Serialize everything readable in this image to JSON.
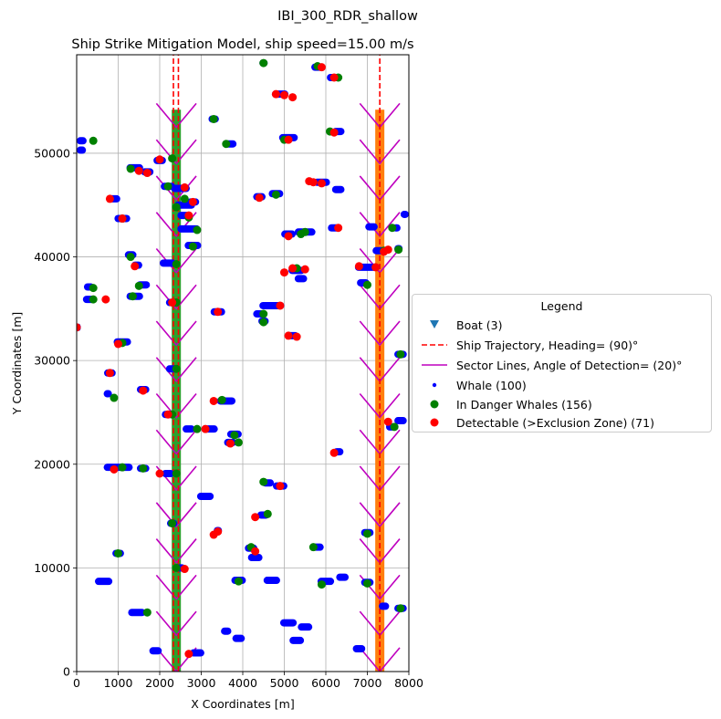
{
  "figure": {
    "suptitle": "IBI_300_RDR_shallow"
  },
  "chart_data": {
    "type": "scatter",
    "title": "Ship Strike Mitigation Model, ship speed=15.00 m/s",
    "xlabel": "X Coordinates [m]",
    "ylabel": "Y Coordinates [m]",
    "xlim": [
      0,
      8000
    ],
    "ylim": [
      0,
      59500
    ],
    "xticks": [
      0,
      1000,
      2000,
      3000,
      4000,
      5000,
      6000,
      7000,
      8000
    ],
    "yticks": [
      0,
      10000,
      20000,
      30000,
      40000,
      50000
    ],
    "xtick_labels": [
      "0",
      "1000",
      "2000",
      "3000",
      "4000",
      "5000",
      "6000",
      "7000",
      "8000"
    ],
    "ytick_labels": [
      "0",
      "10000",
      "20000",
      "30000",
      "40000",
      "50000"
    ],
    "grid": true,
    "legend_placement": "outside-right",
    "colors": {
      "whale": "#0000ff",
      "danger": "#008000",
      "detectable": "#ff0000",
      "trajectory": "#ff0000",
      "sector": "#bf00bf",
      "boat": "#1f77b4",
      "ship_band_1": "#2ca02c",
      "ship_band_2": "#ff7f0e"
    },
    "ship_tracks": [
      {
        "x": 2400,
        "y_start": 0,
        "y_end": 54200,
        "band_color": "#2ca02c"
      },
      {
        "x": 7300,
        "y_start": 0,
        "y_end": 54200,
        "band_color": "#ff7f0e"
      }
    ],
    "trajectory_lines": [
      {
        "x": 2330,
        "y0": 0,
        "y1": 59500
      },
      {
        "x": 2450,
        "y0": 0,
        "y1": 59500
      },
      {
        "x": 7300,
        "y0": 0,
        "y1": 59500
      }
    ],
    "sector_chevrons": {
      "tracks_x": [
        2400,
        7300
      ],
      "y_start": 0,
      "y_end": 54000,
      "spacing": 3500,
      "half_width": 480,
      "arm_height": 2300
    },
    "whale_clusters": [
      {
        "x": 100,
        "y": 51200,
        "w": 280
      },
      {
        "x": 100,
        "y": 50300,
        "w": 250
      },
      {
        "x": 300,
        "y": 37100,
        "w": 250
      },
      {
        "x": 300,
        "y": 35900,
        "w": 300
      },
      {
        "x": 0,
        "y": 33200,
        "w": 200
      },
      {
        "x": 900,
        "y": 45600,
        "w": 300
      },
      {
        "x": 1100,
        "y": 43700,
        "w": 380
      },
      {
        "x": 1400,
        "y": 48600,
        "w": 400
      },
      {
        "x": 1700,
        "y": 48200,
        "w": 300
      },
      {
        "x": 1300,
        "y": 40200,
        "w": 280
      },
      {
        "x": 1450,
        "y": 39200,
        "w": 260
      },
      {
        "x": 1600,
        "y": 37300,
        "w": 330
      },
      {
        "x": 1400,
        "y": 36200,
        "w": 400
      },
      {
        "x": 1100,
        "y": 31800,
        "w": 420
      },
      {
        "x": 800,
        "y": 28800,
        "w": 280
      },
      {
        "x": 750,
        "y": 26800,
        "w": 200
      },
      {
        "x": 1600,
        "y": 27200,
        "w": 300
      },
      {
        "x": 1000,
        "y": 19700,
        "w": 700
      },
      {
        "x": 1600,
        "y": 19600,
        "w": 300
      },
      {
        "x": 1000,
        "y": 11400,
        "w": 280
      },
      {
        "x": 650,
        "y": 8700,
        "w": 420
      },
      {
        "x": 1450,
        "y": 5700,
        "w": 420
      },
      {
        "x": 1900,
        "y": 2000,
        "w": 300
      },
      {
        "x": 2000,
        "y": 49300,
        "w": 300
      },
      {
        "x": 2200,
        "y": 46800,
        "w": 350
      },
      {
        "x": 2500,
        "y": 46600,
        "w": 450
      },
      {
        "x": 2600,
        "y": 45000,
        "w": 500
      },
      {
        "x": 2800,
        "y": 45300,
        "w": 300
      },
      {
        "x": 2600,
        "y": 44000,
        "w": 350
      },
      {
        "x": 2700,
        "y": 42700,
        "w": 550
      },
      {
        "x": 2800,
        "y": 41100,
        "w": 400
      },
      {
        "x": 2200,
        "y": 39400,
        "w": 400
      },
      {
        "x": 2300,
        "y": 35600,
        "w": 300
      },
      {
        "x": 2300,
        "y": 29200,
        "w": 300
      },
      {
        "x": 2200,
        "y": 24800,
        "w": 300
      },
      {
        "x": 2700,
        "y": 23400,
        "w": 300
      },
      {
        "x": 2200,
        "y": 19100,
        "w": 300
      },
      {
        "x": 2300,
        "y": 14300,
        "w": 250
      },
      {
        "x": 2500,
        "y": 10000,
        "w": 250
      },
      {
        "x": 2900,
        "y": 1800,
        "w": 350
      },
      {
        "x": 3300,
        "y": 53300,
        "w": 250
      },
      {
        "x": 3700,
        "y": 50900,
        "w": 300
      },
      {
        "x": 3400,
        "y": 34700,
        "w": 350
      },
      {
        "x": 3600,
        "y": 26100,
        "w": 450
      },
      {
        "x": 3200,
        "y": 23400,
        "w": 400
      },
      {
        "x": 3800,
        "y": 22900,
        "w": 350
      },
      {
        "x": 3700,
        "y": 22100,
        "w": 300
      },
      {
        "x": 3100,
        "y": 16900,
        "w": 400
      },
      {
        "x": 3400,
        "y": 13600,
        "w": 200
      },
      {
        "x": 3600,
        "y": 3900,
        "w": 250
      },
      {
        "x": 3900,
        "y": 3200,
        "w": 300
      },
      {
        "x": 3900,
        "y": 8800,
        "w": 350
      },
      {
        "x": 4500,
        "y": 58700,
        "w": 200
      },
      {
        "x": 4900,
        "y": 55700,
        "w": 400
      },
      {
        "x": 5100,
        "y": 51500,
        "w": 450
      },
      {
        "x": 4400,
        "y": 45800,
        "w": 300
      },
      {
        "x": 4800,
        "y": 46100,
        "w": 350
      },
      {
        "x": 5100,
        "y": 42200,
        "w": 350
      },
      {
        "x": 5500,
        "y": 42400,
        "w": 500
      },
      {
        "x": 5300,
        "y": 38700,
        "w": 400
      },
      {
        "x": 5400,
        "y": 37900,
        "w": 300
      },
      {
        "x": 4700,
        "y": 35300,
        "w": 600
      },
      {
        "x": 4400,
        "y": 34500,
        "w": 300
      },
      {
        "x": 4500,
        "y": 33800,
        "w": 250
      },
      {
        "x": 5200,
        "y": 32400,
        "w": 300
      },
      {
        "x": 4600,
        "y": 18200,
        "w": 300
      },
      {
        "x": 4900,
        "y": 17900,
        "w": 350
      },
      {
        "x": 4500,
        "y": 15100,
        "w": 300
      },
      {
        "x": 4200,
        "y": 11900,
        "w": 300
      },
      {
        "x": 4300,
        "y": 11000,
        "w": 350
      },
      {
        "x": 4700,
        "y": 8800,
        "w": 400
      },
      {
        "x": 5100,
        "y": 4700,
        "w": 400
      },
      {
        "x": 5500,
        "y": 4300,
        "w": 350
      },
      {
        "x": 5300,
        "y": 3000,
        "w": 350
      },
      {
        "x": 5800,
        "y": 58300,
        "w": 300
      },
      {
        "x": 6200,
        "y": 57300,
        "w": 350
      },
      {
        "x": 5900,
        "y": 47200,
        "w": 400
      },
      {
        "x": 6300,
        "y": 46500,
        "w": 300
      },
      {
        "x": 6300,
        "y": 52100,
        "w": 300
      },
      {
        "x": 6200,
        "y": 42800,
        "w": 300
      },
      {
        "x": 6300,
        "y": 21200,
        "w": 250
      },
      {
        "x": 5800,
        "y": 12000,
        "w": 300
      },
      {
        "x": 6000,
        "y": 8700,
        "w": 400
      },
      {
        "x": 6400,
        "y": 9100,
        "w": 300
      },
      {
        "x": 7000,
        "y": 39000,
        "w": 600
      },
      {
        "x": 6900,
        "y": 37500,
        "w": 300
      },
      {
        "x": 7300,
        "y": 40600,
        "w": 350
      },
      {
        "x": 7100,
        "y": 42900,
        "w": 300
      },
      {
        "x": 7700,
        "y": 42800,
        "w": 200
      },
      {
        "x": 7750,
        "y": 40800,
        "w": 200
      },
      {
        "x": 7800,
        "y": 30600,
        "w": 300
      },
      {
        "x": 7600,
        "y": 23600,
        "w": 300
      },
      {
        "x": 7800,
        "y": 24200,
        "w": 300
      },
      {
        "x": 7000,
        "y": 13400,
        "w": 300
      },
      {
        "x": 7000,
        "y": 8600,
        "w": 300
      },
      {
        "x": 7800,
        "y": 6100,
        "w": 300
      },
      {
        "x": 7400,
        "y": 6300,
        "w": 250
      },
      {
        "x": 6800,
        "y": 2200,
        "w": 300
      },
      {
        "x": 7900,
        "y": 44100,
        "w": 200
      }
    ],
    "danger_points": [
      [
        400,
        51200
      ],
      [
        400,
        37000
      ],
      [
        400,
        35900
      ],
      [
        1300,
        48500
      ],
      [
        1100,
        43700
      ],
      [
        1300,
        40000
      ],
      [
        1350,
        36200
      ],
      [
        1500,
        37200
      ],
      [
        1100,
        31700
      ],
      [
        900,
        26400
      ],
      [
        1100,
        19700
      ],
      [
        1600,
        19600
      ],
      [
        1000,
        11400
      ],
      [
        1700,
        5700
      ],
      [
        2300,
        49500
      ],
      [
        2200,
        46800
      ],
      [
        2400,
        44800
      ],
      [
        2600,
        45600
      ],
      [
        2700,
        43800
      ],
      [
        2900,
        42600
      ],
      [
        2800,
        41000
      ],
      [
        2400,
        39300
      ],
      [
        2400,
        35600
      ],
      [
        2400,
        29200
      ],
      [
        2300,
        24800
      ],
      [
        2400,
        19100
      ],
      [
        2300,
        14300
      ],
      [
        2400,
        10000
      ],
      [
        3300,
        53300
      ],
      [
        3600,
        50900
      ],
      [
        3500,
        26200
      ],
      [
        2900,
        23400
      ],
      [
        3800,
        22800
      ],
      [
        3900,
        22100
      ],
      [
        3900,
        8700
      ],
      [
        4500,
        58700
      ],
      [
        5000,
        51300
      ],
      [
        4800,
        46000
      ],
      [
        5500,
        42400
      ],
      [
        5400,
        42200
      ],
      [
        5300,
        38900
      ],
      [
        4500,
        34500
      ],
      [
        4500,
        33700
      ],
      [
        4500,
        18300
      ],
      [
        4600,
        15200
      ],
      [
        4200,
        12000
      ],
      [
        5700,
        12000
      ],
      [
        5900,
        8400
      ],
      [
        5800,
        58400
      ],
      [
        6100,
        52100
      ],
      [
        6300,
        57300
      ],
      [
        7000,
        37300
      ],
      [
        7400,
        40600
      ],
      [
        7750,
        40700
      ],
      [
        7600,
        42800
      ],
      [
        7800,
        30600
      ],
      [
        7650,
        23600
      ],
      [
        7000,
        13300
      ],
      [
        7000,
        8500
      ],
      [
        7800,
        6100
      ]
    ],
    "detectable_points": [
      [
        0,
        33200
      ],
      [
        800,
        45600
      ],
      [
        700,
        35900
      ],
      [
        1100,
        43700
      ],
      [
        1500,
        48300
      ],
      [
        1700,
        48100
      ],
      [
        1400,
        39100
      ],
      [
        1000,
        31600
      ],
      [
        800,
        28800
      ],
      [
        1600,
        27100
      ],
      [
        900,
        19500
      ],
      [
        2000,
        49400
      ],
      [
        2600,
        46700
      ],
      [
        2700,
        44000
      ],
      [
        2800,
        45300
      ],
      [
        2300,
        35600
      ],
      [
        2200,
        24800
      ],
      [
        2000,
        19100
      ],
      [
        2600,
        9900
      ],
      [
        2700,
        1700
      ],
      [
        3400,
        34700
      ],
      [
        3300,
        26100
      ],
      [
        3100,
        23400
      ],
      [
        3700,
        22000
      ],
      [
        3400,
        13500
      ],
      [
        3300,
        13200
      ],
      [
        4800,
        55700
      ],
      [
        5000,
        55600
      ],
      [
        5200,
        55400
      ],
      [
        5100,
        51300
      ],
      [
        4400,
        45700
      ],
      [
        5100,
        42000
      ],
      [
        5000,
        38500
      ],
      [
        5500,
        38800
      ],
      [
        5200,
        38900
      ],
      [
        4900,
        35300
      ],
      [
        5100,
        32400
      ],
      [
        5300,
        32300
      ],
      [
        4300,
        14900
      ],
      [
        4900,
        17900
      ],
      [
        4300,
        11600
      ],
      [
        5900,
        58300
      ],
      [
        6200,
        57300
      ],
      [
        6200,
        52000
      ],
      [
        5700,
        47200
      ],
      [
        5900,
        47100
      ],
      [
        5600,
        47300
      ],
      [
        6300,
        42800
      ],
      [
        6200,
        21100
      ],
      [
        6800,
        39100
      ],
      [
        7200,
        39000
      ],
      [
        7400,
        40500
      ],
      [
        7500,
        40700
      ],
      [
        7500,
        24100
      ]
    ],
    "legend": {
      "title": "Legend",
      "entries": [
        {
          "label": "Boat (3)",
          "marker": "triangle-down",
          "color": "#1f77b4"
        },
        {
          "label": "Ship Trajectory, Heading= (90)°",
          "marker": "dashed-line",
          "color": "#ff0000"
        },
        {
          "label": "Sector Lines, Angle of Detection= (20)°",
          "marker": "solid-line",
          "color": "#bf00bf"
        },
        {
          "label": "Whale (100)",
          "marker": "small-dot",
          "color": "#0000ff"
        },
        {
          "label": "In Danger Whales (156)",
          "marker": "dot",
          "color": "#008000"
        },
        {
          "label": "Detectable (>Exclusion Zone) (71)",
          "marker": "dot",
          "color": "#ff0000"
        }
      ]
    }
  }
}
